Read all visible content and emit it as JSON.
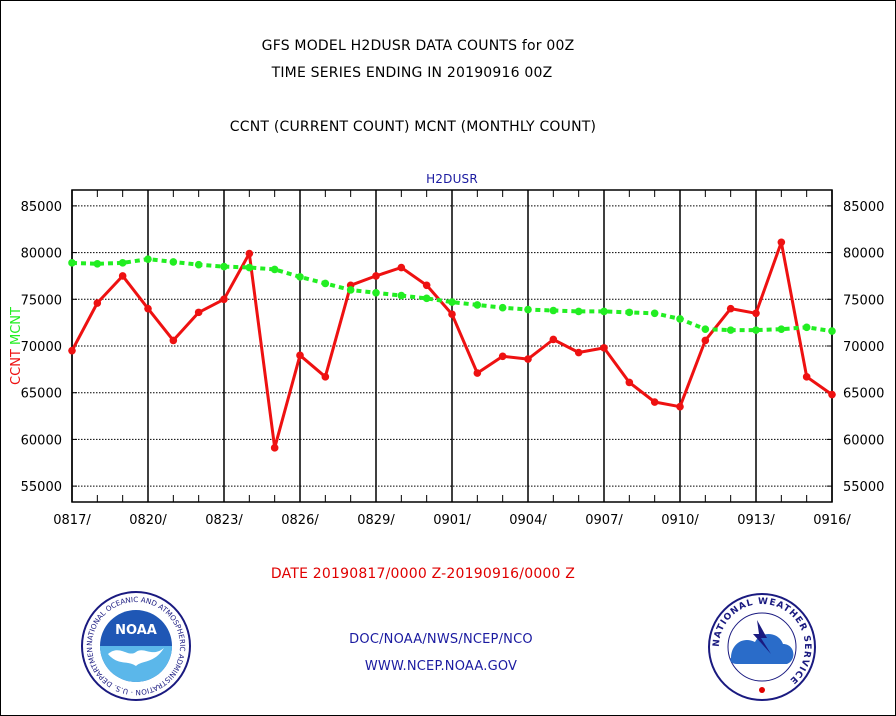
{
  "header": {
    "title_line1": "GFS MODEL H2DUSR DATA COUNTS for 00Z",
    "title_line2": "TIME SERIES ENDING IN 20190916 00Z",
    "subtitle": "CCNT (CURRENT COUNT) MCNT (MONTHLY COUNT)"
  },
  "date_range": "DATE 20190817/0000 Z-20190916/0000 Z",
  "footer": {
    "line1": "DOC/NOAA/NWS/NCEP/NCO",
    "line2": "WWW.NCEP.NOAA.GOV"
  },
  "logos": {
    "noaa_ring_text": "NATIONAL OCEANIC AND ATMOSPHERIC ADMINISTRATION · U.S. DEPARTMENT OF COMMERCE",
    "noaa_center": "NOAA",
    "nws_ring_text": "NATIONAL WEATHER SERVICE"
  },
  "colors": {
    "ccnt": "#ee1111",
    "mcnt": "#22ee22",
    "panel_title": "#1a1aa0",
    "date_range": "#e00000"
  },
  "chart_data": {
    "type": "line",
    "title": "H2DUSR",
    "ylabel_parts": [
      {
        "text": "CCNT",
        "color": "#ee1111"
      },
      {
        "text": "MCNT",
        "color": "#22ee22"
      }
    ],
    "x": [
      "0817",
      "0818",
      "0819",
      "0820",
      "0821",
      "0822",
      "0823",
      "0824",
      "0825",
      "0826",
      "0827",
      "0828",
      "0829",
      "0830",
      "0831",
      "0901",
      "0902",
      "0903",
      "0904",
      "0905",
      "0906",
      "0907",
      "0908",
      "0909",
      "0910",
      "0911",
      "0912",
      "0913",
      "0914",
      "0915",
      "0916"
    ],
    "x_tick_labels": [
      "0817/",
      "0820/",
      "0823/",
      "0826/",
      "0829/",
      "0901/",
      "0904/",
      "0907/",
      "0910/",
      "0913/",
      "0916/"
    ],
    "x_tick_index": [
      0,
      3,
      6,
      9,
      12,
      15,
      18,
      21,
      24,
      27,
      30
    ],
    "y_ticks": [
      55000,
      60000,
      65000,
      70000,
      75000,
      80000,
      85000
    ],
    "y_tick_labels": [
      "55000",
      "60000",
      "65000",
      "70000",
      "75000",
      "80000",
      "85000"
    ],
    "ylim": [
      53300,
      86700
    ],
    "grid": true,
    "series": [
      {
        "name": "CCNT",
        "color": "#ee1111",
        "style": "solid",
        "values": [
          69500,
          74600,
          77500,
          74000,
          70600,
          73600,
          75000,
          79900,
          59100,
          69000,
          66700,
          76500,
          77500,
          78400,
          76500,
          73400,
          67100,
          68900,
          68600,
          70700,
          69300,
          69800,
          66100,
          64000,
          63500,
          70600,
          74000,
          73500,
          81100,
          66700,
          64800
        ]
      },
      {
        "name": "MCNT",
        "color": "#22ee22",
        "style": "dashed",
        "values": [
          78900,
          78800,
          78900,
          79300,
          79000,
          78700,
          78500,
          78400,
          78200,
          77400,
          76700,
          76000,
          75700,
          75400,
          75100,
          74700,
          74400,
          74100,
          73900,
          73800,
          73700,
          73700,
          73600,
          73500,
          72900,
          71800,
          71700,
          71700,
          71800,
          72000,
          71600
        ]
      }
    ]
  }
}
